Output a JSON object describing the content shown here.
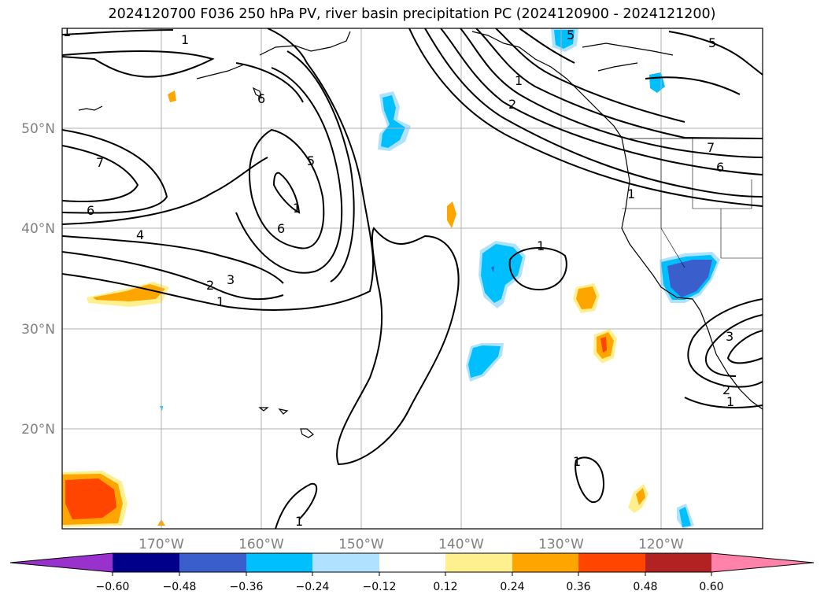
{
  "title": "2024120700 F036 250 hPa PV, river basin precipitation PC (2024120900 - 2024121200)",
  "map": {
    "lon_ticks": [
      "170°W",
      "160°W",
      "150°W",
      "140°W",
      "130°W",
      "120°W"
    ],
    "lat_ticks": [
      "50°N",
      "40°N",
      "30°N",
      "20°N"
    ],
    "grid": true,
    "contour_field": "250 hPa PV",
    "contour_color": "#000000",
    "contour_labels": [
      "1",
      "7",
      "6",
      "4",
      "2",
      "3",
      "1",
      "1",
      "6",
      "5",
      "1",
      "6",
      "5",
      "1",
      "2",
      "5",
      "7",
      "6",
      "1",
      "1",
      "3",
      "2",
      "1",
      "1",
      "1"
    ]
  },
  "colorbar": {
    "orientation": "horizontal",
    "extend": "both",
    "colors": [
      "#9932cc",
      "#00008b",
      "#3a5fcd",
      "#00bfff",
      "#b0e2ff",
      "#ffffff",
      "#fff08f",
      "#ffa500",
      "#ff4500",
      "#b22222",
      "#ff82ab"
    ],
    "tick_labels": [
      "−0.60",
      "−0.48",
      "−0.36",
      "−0.24",
      "−0.12",
      "0.12",
      "0.24",
      "0.36",
      "0.48",
      "0.60"
    ]
  }
}
